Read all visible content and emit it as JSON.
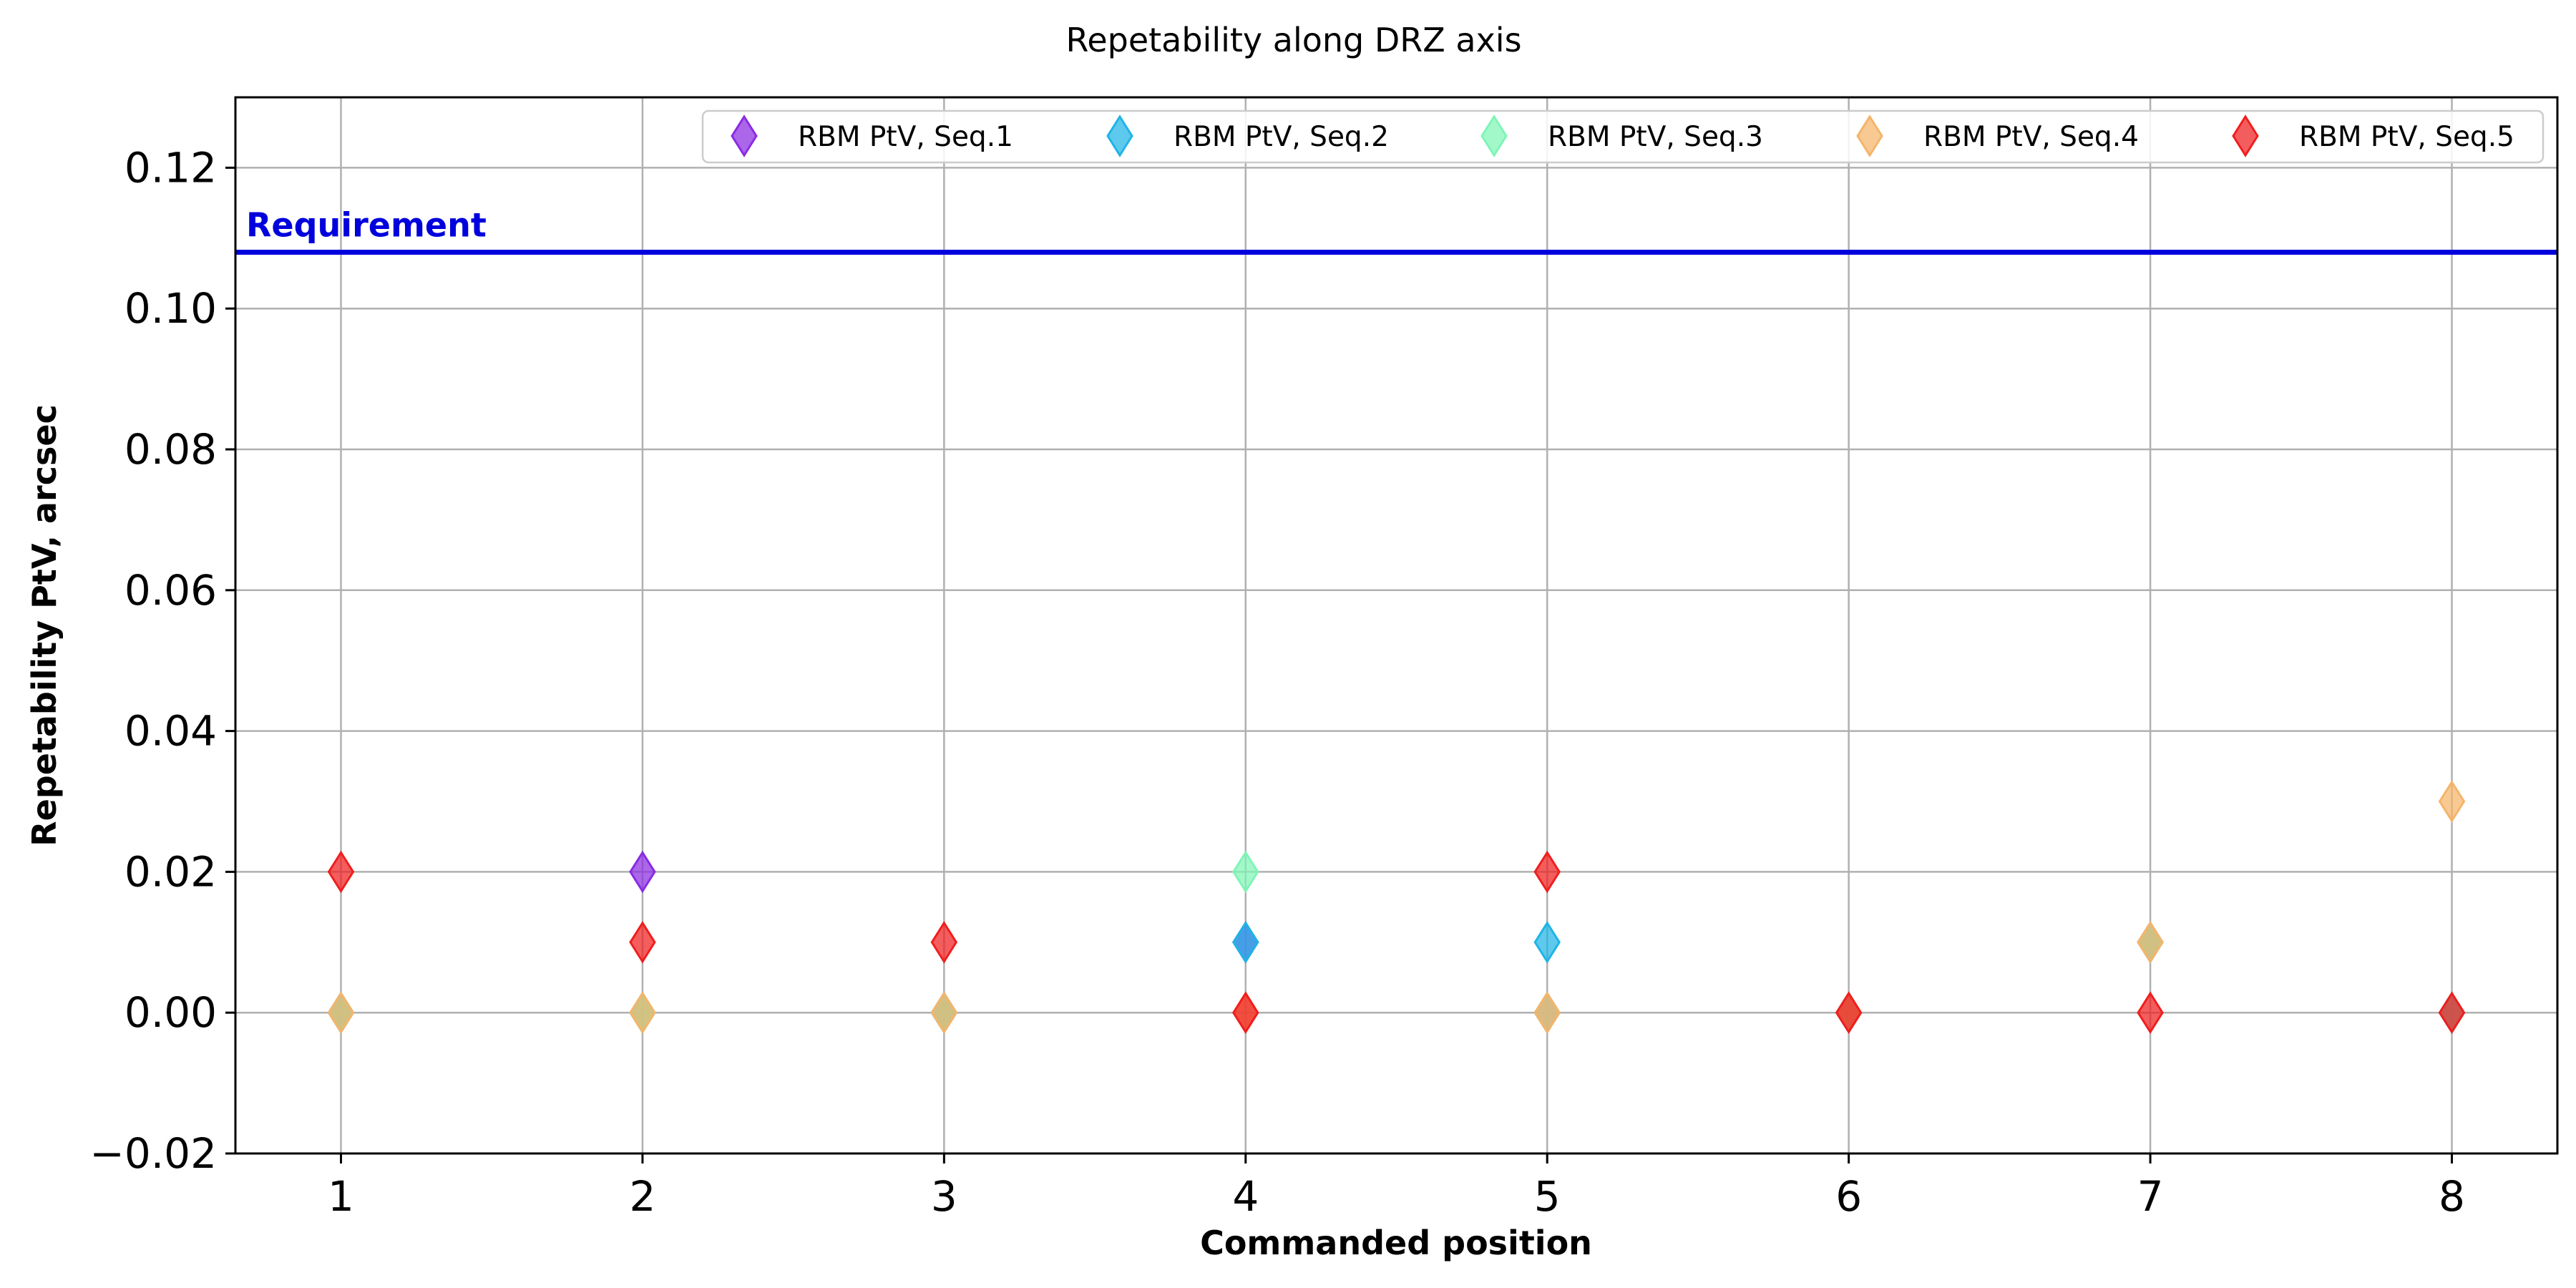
{
  "chart_data": {
    "type": "scatter",
    "title": "Repetability along DRZ axis",
    "xlabel": "Commanded position",
    "ylabel": "Repetability PtV, arcsec",
    "xlim": [
      0.65,
      8.35
    ],
    "ylim": [
      -0.02,
      0.13
    ],
    "x_ticks": [
      1,
      2,
      3,
      4,
      5,
      6,
      7,
      8
    ],
    "x_tick_labels": [
      "1",
      "2",
      "3",
      "4",
      "5",
      "6",
      "7",
      "8"
    ],
    "y_ticks": [
      -0.02,
      0.0,
      0.02,
      0.04,
      0.06,
      0.08,
      0.1,
      0.12
    ],
    "y_tick_labels": [
      "−0.02",
      "0.00",
      "0.02",
      "0.04",
      "0.06",
      "0.08",
      "0.10",
      "0.12"
    ],
    "grid": true,
    "legend_position": "top-right",
    "marker": "thin-diamond",
    "reference_line": {
      "label": "Requirement",
      "value": 0.108,
      "color": "#0000dd"
    },
    "series": [
      {
        "name": "RBM PtV, Seq.1",
        "color": "#8a2be2",
        "x": [
          1,
          2,
          3,
          4,
          5,
          6,
          7,
          8
        ],
        "y": [
          0.0,
          0.02,
          0.0,
          0.01,
          0.0,
          0.0,
          0.01,
          0.0
        ]
      },
      {
        "name": "RBM PtV, Seq.2",
        "color": "#1fb4e6",
        "x": [
          1,
          2,
          3,
          4,
          5,
          6,
          7,
          8
        ],
        "y": [
          0.0,
          0.0,
          0.0,
          0.01,
          0.01,
          0.0,
          0.01,
          0.0
        ]
      },
      {
        "name": "RBM PtV, Seq.3",
        "color": "#7ff5b6",
        "x": [
          1,
          2,
          3,
          4,
          5,
          6,
          7,
          8
        ],
        "y": [
          0.0,
          0.0,
          0.0,
          0.02,
          0.0,
          0.0,
          0.01,
          0.0
        ]
      },
      {
        "name": "RBM PtV, Seq.4",
        "color": "#f5b46a",
        "x": [
          1,
          2,
          3,
          4,
          5,
          6,
          7,
          8
        ],
        "y": [
          0.0,
          0.0,
          0.0,
          0.0,
          0.0,
          0.0,
          0.01,
          0.03
        ]
      },
      {
        "name": "RBM PtV, Seq.5",
        "color": "#f01e1e",
        "x": [
          1,
          2,
          3,
          4,
          5,
          6,
          7,
          8
        ],
        "y": [
          0.02,
          0.01,
          0.01,
          0.0,
          0.02,
          0.0,
          0.0,
          0.0
        ]
      }
    ]
  }
}
